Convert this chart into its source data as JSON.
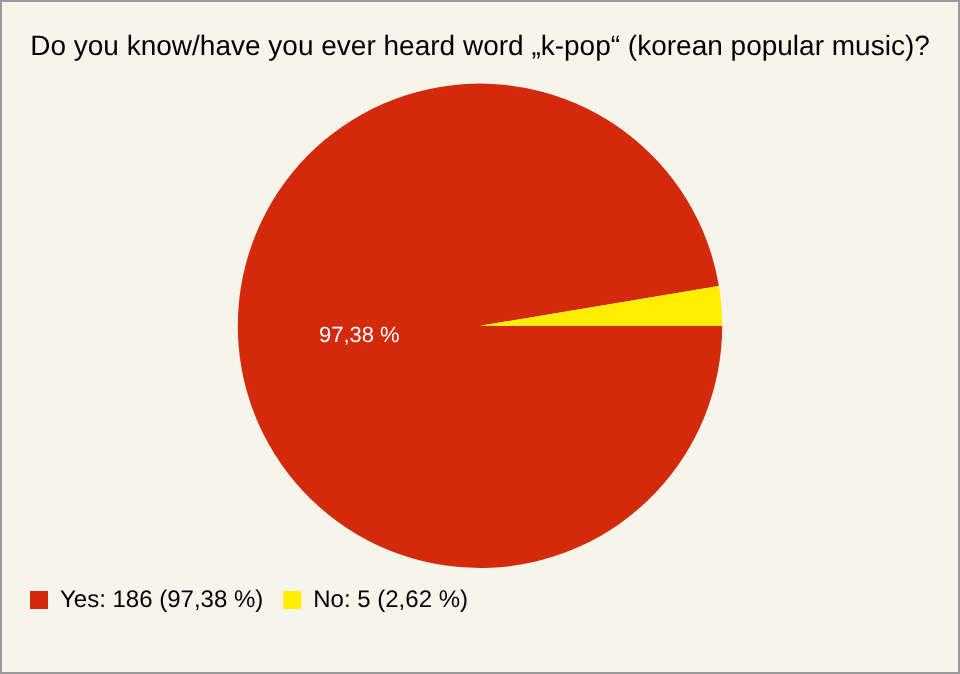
{
  "chart_data": {
    "type": "pie",
    "title": "Do you know/have you ever heard word „k-pop“ (korean popular music)?",
    "categories": [
      "Yes: 186 (97,38 %)",
      "No: 5 (2,62 %)"
    ],
    "values": [
      97.38,
      2.62
    ],
    "colors": [
      "#d42a0c",
      "#ffee00"
    ],
    "value_labels": [
      "97,38 %",
      null
    ],
    "legend": "bottom left"
  }
}
